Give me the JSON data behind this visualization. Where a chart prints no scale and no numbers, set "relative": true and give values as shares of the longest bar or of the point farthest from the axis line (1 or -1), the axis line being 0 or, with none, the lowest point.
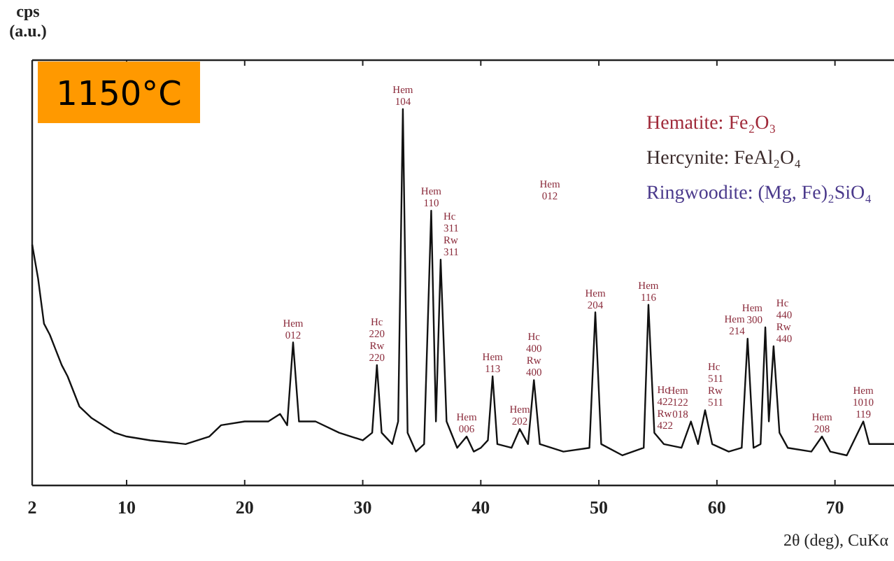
{
  "chart_data": {
    "type": "line",
    "title": "1150°C",
    "xlabel": "2θ (deg), CuKα",
    "ylabel": "cps (a.u.)",
    "relative": true,
    "xlim": [
      2,
      75
    ],
    "xticks": [
      2,
      10,
      20,
      30,
      40,
      50,
      60,
      70
    ],
    "grid": false,
    "marker": "none",
    "line_style": "solid",
    "x": [
      2,
      2.5,
      3,
      3.5,
      4,
      4.5,
      5,
      6,
      7,
      8,
      9,
      10,
      12,
      15,
      17,
      18,
      20,
      22,
      23,
      23.6,
      24.1,
      24.6,
      26,
      28,
      30,
      30.8,
      31.2,
      31.6,
      32.5,
      33.0,
      33.4,
      33.8,
      34.5,
      35.2,
      35.8,
      36.2,
      36.6,
      37.1,
      38,
      38.8,
      39.4,
      40,
      40.6,
      41.0,
      41.4,
      42.6,
      43.3,
      44,
      44.5,
      45,
      47,
      49.2,
      49.7,
      50.2,
      52,
      53.8,
      54.2,
      54.7,
      55.5,
      57,
      57.8,
      58.4,
      59.0,
      59.6,
      61,
      62.1,
      62.6,
      63.1,
      63.7,
      64.1,
      64.4,
      64.8,
      65.3,
      66,
      68,
      68.9,
      69.6,
      71,
      72.4,
      72.9,
      75
    ],
    "series": [
      {
        "color": "#111111",
        "values": [
          0.64,
          0.55,
          0.43,
          0.4,
          0.36,
          0.32,
          0.29,
          0.21,
          0.18,
          0.16,
          0.14,
          0.13,
          0.12,
          0.11,
          0.13,
          0.16,
          0.17,
          0.17,
          0.19,
          0.16,
          0.38,
          0.17,
          0.17,
          0.14,
          0.12,
          0.14,
          0.32,
          0.14,
          0.11,
          0.17,
          1.0,
          0.14,
          0.09,
          0.11,
          0.73,
          0.17,
          0.6,
          0.17,
          0.1,
          0.13,
          0.09,
          0.1,
          0.12,
          0.29,
          0.11,
          0.1,
          0.15,
          0.11,
          0.28,
          0.11,
          0.09,
          0.1,
          0.46,
          0.11,
          0.08,
          0.1,
          0.48,
          0.14,
          0.11,
          0.1,
          0.17,
          0.11,
          0.2,
          0.11,
          0.09,
          0.1,
          0.39,
          0.1,
          0.11,
          0.42,
          0.17,
          0.37,
          0.14,
          0.1,
          0.09,
          0.13,
          0.09,
          0.08,
          0.17,
          0.11,
          0.11
        ]
      }
    ],
    "annotations": [
      "Hematite: Fe₂O₃",
      "Hercynite: FeAl₂O₄",
      "Ringwoodite: (Mg, Fe)₂SiO₄",
      "Hem 012",
      {
        "text": "Hem 104",
        "x": 33.4,
        "y": 1.0
      },
      {
        "text": "Hem 110",
        "x": 35.8,
        "y": 0.73
      },
      {
        "text": "Hc 311 Rw 311",
        "x": 36.6,
        "y": 0.6
      },
      {
        "text": "Hem 012",
        "x": 24.1,
        "y": 0.38
      },
      {
        "text": "Hc 220 Rw 220",
        "x": 31.2,
        "y": 0.32
      },
      {
        "text": "Hem 113",
        "x": 41.0,
        "y": 0.29
      },
      {
        "text": "Hc 400 Rw 400",
        "x": 44.5,
        "y": 0.28
      },
      {
        "text": "Hem 006",
        "x": 38.8,
        "y": 0.13
      },
      {
        "text": "Hem 202",
        "x": 43.3,
        "y": 0.15
      },
      {
        "text": "Hem 204",
        "x": 49.7,
        "y": 0.46
      },
      {
        "text": "Hem 116",
        "x": 54.2,
        "y": 0.48
      },
      {
        "text": "Hc 422 Rw 422",
        "x": 54.7,
        "y": 0.14
      },
      {
        "text": "Hem 122 018",
        "x": 57.8,
        "y": 0.17
      },
      {
        "text": "Hc 511 Rw 511",
        "x": 59.0,
        "y": 0.2
      },
      {
        "text": "Hem 214",
        "x": 62.6,
        "y": 0.39
      },
      {
        "text": "Hem 300",
        "x": 64.1,
        "y": 0.42
      },
      {
        "text": "Hc 440 Rw 440",
        "x": 64.8,
        "y": 0.37
      },
      {
        "text": "Hem 208",
        "x": 68.9,
        "y": 0.13
      },
      {
        "text": "Hem 1010 119",
        "x": 72.4,
        "y": 0.17
      }
    ]
  }
}
